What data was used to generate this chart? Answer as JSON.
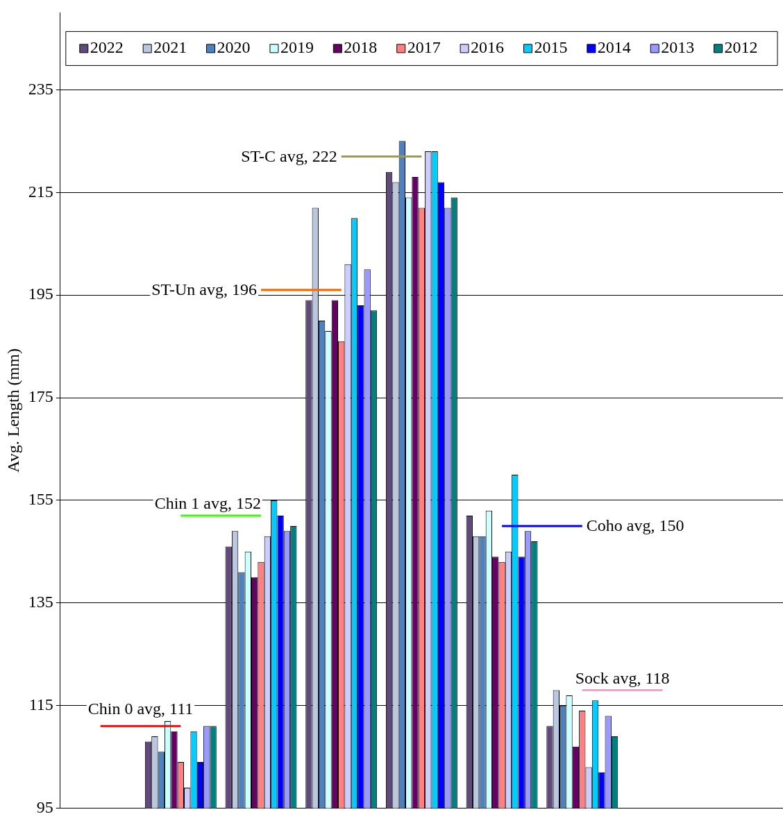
{
  "chart_data": {
    "type": "bar",
    "ylabel": "Avg. Length (mm)",
    "categories": [
      null,
      null,
      null,
      null,
      null,
      null,
      null,
      null,
      null
    ],
    "ylim": [
      95,
      250
    ],
    "yticks": [
      95,
      115,
      135,
      155,
      175,
      195,
      215,
      235
    ],
    "grid": "y",
    "legend": "top",
    "tick_labels": "y",
    "series": [
      {
        "name": "2022",
        "color": "#604a7b",
        "values": [
          null,
          108,
          146,
          194,
          219,
          152,
          111,
          null,
          null
        ]
      },
      {
        "name": "2021",
        "color": "#b9c7e0",
        "values": [
          null,
          109,
          149,
          212,
          217,
          148,
          118,
          null,
          null
        ]
      },
      {
        "name": "2020",
        "color": "#4f81bd",
        "values": [
          null,
          106,
          141,
          190,
          225,
          148,
          115,
          null,
          null
        ]
      },
      {
        "name": "2019",
        "color": "#ccffff",
        "values": [
          null,
          112,
          145,
          188,
          214,
          153,
          117,
          null,
          null
        ]
      },
      {
        "name": "2018",
        "color": "#660066",
        "values": [
          null,
          110,
          140,
          194,
          218,
          144,
          107,
          null,
          null
        ]
      },
      {
        "name": "2017",
        "color": "#ff8080",
        "values": [
          null,
          104,
          143,
          186,
          212,
          143,
          114,
          null,
          null
        ]
      },
      {
        "name": "2016",
        "color": "#ccccff",
        "values": [
          null,
          99,
          148,
          201,
          223,
          145,
          103,
          null,
          null
        ]
      },
      {
        "name": "2015",
        "color": "#00ccff",
        "values": [
          null,
          110,
          155,
          210,
          223,
          160,
          116,
          null,
          null
        ]
      },
      {
        "name": "2014",
        "color": "#0000ff",
        "values": [
          null,
          104,
          152,
          193,
          217,
          144,
          102,
          null,
          null
        ]
      },
      {
        "name": "2013",
        "color": "#9999ff",
        "values": [
          null,
          111,
          149,
          200,
          212,
          149,
          113,
          null,
          null
        ]
      },
      {
        "name": "2012",
        "color": "#008080",
        "values": [
          null,
          111,
          150,
          192,
          214,
          147,
          109,
          null,
          null
        ]
      },
      {
        "type": "line",
        "name": "Chin 0 avg, 111",
        "color": "#ff0000",
        "marker": "none",
        "values": [
          111,
          111,
          null,
          null,
          null,
          null,
          null,
          null,
          null
        ]
      },
      {
        "type": "line",
        "name": "Chin 1 avg, 152",
        "color": "#33ff00",
        "marker": "none",
        "values": [
          null,
          152,
          152,
          null,
          null,
          null,
          null,
          null,
          null
        ]
      },
      {
        "type": "line",
        "name": "ST-Un avg, 196",
        "color": "#ff6600",
        "marker": "none",
        "values": [
          null,
          null,
          196,
          196,
          null,
          null,
          null,
          null,
          null
        ]
      },
      {
        "type": "line",
        "name": "ST-C avg, 222",
        "color": "#999966",
        "marker": "none",
        "values": [
          null,
          null,
          null,
          222,
          222,
          null,
          null,
          null,
          null
        ]
      },
      {
        "type": "line",
        "name": "Coho avg, 150",
        "color": "#0000ff",
        "marker": "none",
        "values": [
          null,
          null,
          null,
          null,
          null,
          150,
          150,
          null,
          null
        ]
      },
      {
        "type": "line",
        "name": "Sock avg, 118",
        "color": "#ff99cc",
        "marker": "none",
        "values": [
          null,
          null,
          null,
          null,
          null,
          null,
          118,
          118,
          null
        ]
      }
    ]
  }
}
